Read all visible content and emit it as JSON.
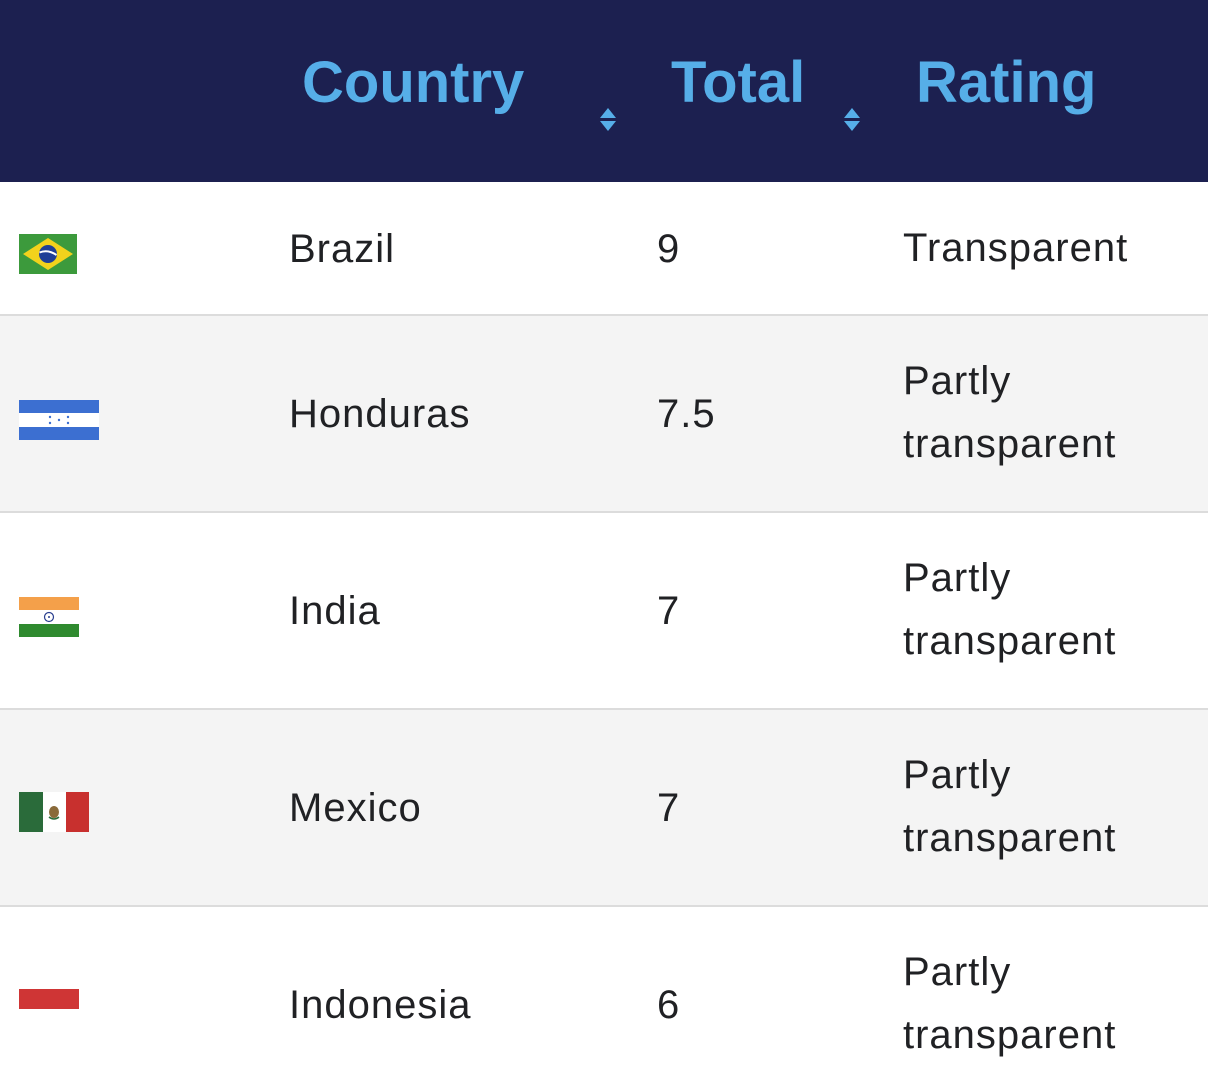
{
  "header": {
    "columns": [
      {
        "label": "Country"
      },
      {
        "label": "Total"
      },
      {
        "label": "Rating"
      }
    ]
  },
  "rows": [
    {
      "flag_icon": "brazil-flag-icon",
      "country": "Brazil",
      "total": "9",
      "rating_line1": "Transparent",
      "rating_line2": ""
    },
    {
      "flag_icon": "honduras-flag-icon",
      "country": "Honduras",
      "total": "7.5",
      "rating_line1": "Partly",
      "rating_line2": "transparent"
    },
    {
      "flag_icon": "india-flag-icon",
      "country": "India",
      "total": "7",
      "rating_line1": "Partly",
      "rating_line2": "transparent"
    },
    {
      "flag_icon": "mexico-flag-icon",
      "country": "Mexico",
      "total": "7",
      "rating_line1": "Partly",
      "rating_line2": "transparent"
    },
    {
      "flag_icon": "indonesia-flag-icon",
      "country": "Indonesia",
      "total": "6",
      "rating_line1": "Partly",
      "rating_line2": "transparent"
    }
  ],
  "colors": {
    "header_bg": "#1c2050",
    "header_text": "#56aee8",
    "row_alt_bg": "#f4f4f4",
    "text": "#202124"
  }
}
